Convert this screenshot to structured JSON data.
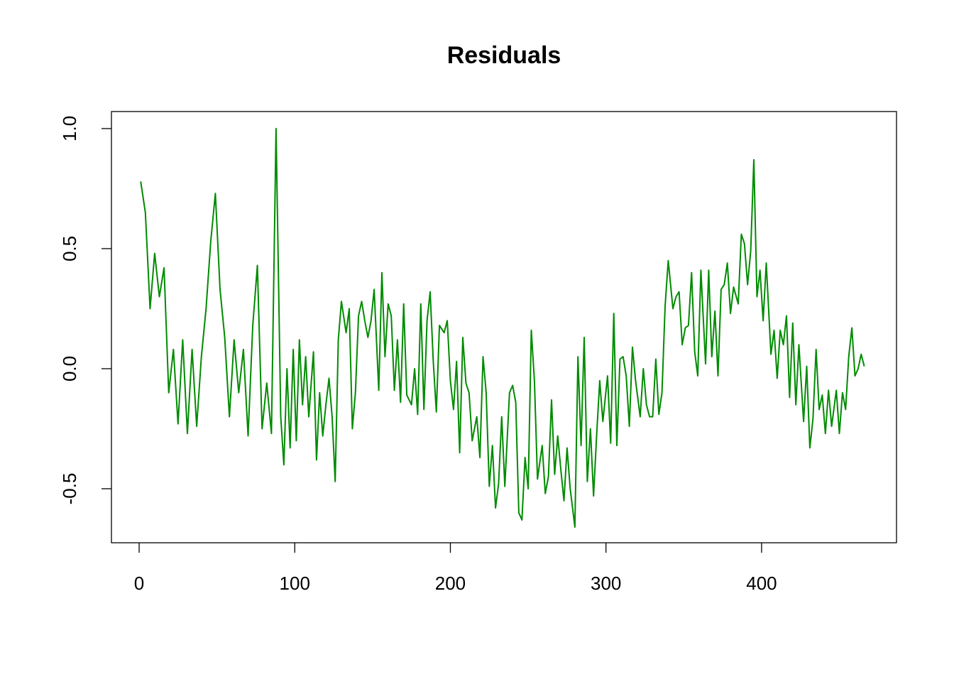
{
  "chart_data": {
    "type": "line",
    "title": "Residuals",
    "x": [
      1,
      4,
      7,
      10,
      13,
      16,
      19,
      22,
      25,
      28,
      31,
      34,
      37,
      40,
      43,
      46,
      49,
      52,
      55,
      58,
      61,
      64,
      67,
      70,
      73,
      76,
      79,
      82,
      85,
      88,
      91,
      93,
      95,
      97,
      99,
      101,
      103,
      105,
      107,
      109,
      112,
      114,
      116,
      118,
      120,
      122,
      124,
      126,
      128,
      130,
      133,
      135,
      137,
      139,
      141,
      143,
      145,
      147,
      149,
      151,
      154,
      156,
      158,
      160,
      162,
      164,
      166,
      168,
      170,
      172,
      175,
      177,
      179,
      181,
      183,
      185,
      187,
      189,
      191,
      193,
      196,
      198,
      200,
      202,
      204,
      206,
      208,
      210,
      212,
      214,
      217,
      219,
      221,
      223,
      225,
      227,
      229,
      231,
      233,
      235,
      238,
      240,
      242,
      244,
      246,
      248,
      250,
      252,
      254,
      256,
      259,
      261,
      263,
      265,
      267,
      269,
      271,
      273,
      275,
      277,
      280,
      282,
      284,
      286,
      288,
      290,
      292,
      294,
      296,
      298,
      301,
      303,
      305,
      307,
      309,
      311,
      313,
      315,
      317,
      319,
      322,
      324,
      326,
      328,
      330,
      332,
      334,
      336,
      338,
      340,
      343,
      345,
      347,
      349,
      351,
      353,
      355,
      357,
      359,
      361,
      364,
      366,
      368,
      370,
      372,
      374,
      376,
      378,
      380,
      382,
      385,
      387,
      389,
      391,
      393,
      395,
      397,
      399,
      401,
      403,
      406,
      408,
      410,
      412,
      414,
      416,
      418,
      420,
      422,
      424,
      427,
      429,
      431,
      433,
      435,
      437,
      439,
      441,
      443,
      445,
      448,
      450,
      452,
      454,
      456,
      458,
      460,
      462,
      464,
      466
    ],
    "values": [
      0.78,
      0.65,
      0.25,
      0.48,
      0.3,
      0.42,
      -0.1,
      0.08,
      -0.23,
      0.12,
      -0.27,
      0.08,
      -0.24,
      0.05,
      0.25,
      0.53,
      0.73,
      0.33,
      0.13,
      -0.2,
      0.12,
      -0.1,
      0.08,
      -0.28,
      0.18,
      0.43,
      -0.25,
      -0.06,
      -0.27,
      1.0,
      -0.2,
      -0.4,
      0.0,
      -0.33,
      0.08,
      -0.3,
      0.12,
      -0.15,
      0.05,
      -0.2,
      0.07,
      -0.38,
      -0.1,
      -0.28,
      -0.15,
      -0.04,
      -0.2,
      -0.47,
      0.12,
      0.28,
      0.15,
      0.25,
      -0.25,
      -0.1,
      0.22,
      0.28,
      0.2,
      0.13,
      0.2,
      0.33,
      -0.09,
      0.4,
      0.05,
      0.27,
      0.22,
      -0.09,
      0.12,
      -0.14,
      0.27,
      -0.11,
      -0.15,
      0.0,
      -0.19,
      0.27,
      -0.17,
      0.2,
      0.32,
      0.03,
      -0.18,
      0.18,
      0.15,
      0.2,
      -0.05,
      -0.17,
      0.03,
      -0.35,
      0.13,
      -0.06,
      -0.1,
      -0.3,
      -0.2,
      -0.37,
      0.05,
      -0.1,
      -0.49,
      -0.32,
      -0.58,
      -0.48,
      -0.2,
      -0.49,
      -0.1,
      -0.07,
      -0.14,
      -0.6,
      -0.63,
      -0.37,
      -0.5,
      0.16,
      -0.05,
      -0.46,
      -0.32,
      -0.52,
      -0.45,
      -0.13,
      -0.44,
      -0.28,
      -0.42,
      -0.55,
      -0.33,
      -0.5,
      -0.66,
      0.05,
      -0.32,
      0.13,
      -0.47,
      -0.25,
      -0.53,
      -0.28,
      -0.05,
      -0.22,
      -0.03,
      -0.31,
      0.23,
      -0.32,
      0.04,
      0.05,
      -0.03,
      -0.24,
      0.09,
      -0.05,
      -0.2,
      0.0,
      -0.15,
      -0.2,
      -0.2,
      0.04,
      -0.19,
      -0.1,
      0.26,
      0.45,
      0.25,
      0.3,
      0.32,
      0.1,
      0.17,
      0.18,
      0.4,
      0.07,
      -0.03,
      0.41,
      0.02,
      0.41,
      0.05,
      0.24,
      -0.03,
      0.33,
      0.35,
      0.44,
      0.23,
      0.34,
      0.27,
      0.56,
      0.52,
      0.35,
      0.49,
      0.87,
      0.3,
      0.41,
      0.2,
      0.44,
      0.06,
      0.16,
      -0.04,
      0.16,
      0.1,
      0.22,
      -0.12,
      0.19,
      -0.15,
      0.1,
      -0.22,
      0.01,
      -0.33,
      -0.21,
      0.08,
      -0.17,
      -0.11,
      -0.27,
      -0.09,
      -0.24,
      -0.09,
      -0.27,
      -0.1,
      -0.17,
      0.05,
      0.17,
      -0.03,
      0.0,
      0.06,
      0.01
    ],
    "color": "#008b00",
    "xlim": [
      -17.8,
      486.7
    ],
    "xticks": [
      0,
      100,
      200,
      300,
      400
    ],
    "ylim": [
      -0.725,
      1.071
    ],
    "yticks": [
      -0.5,
      {
        "value": 0,
        "label": "0.0"
      },
      0.5,
      {
        "value": 1,
        "label": "1.0"
      }
    ],
    "grid": false
  }
}
